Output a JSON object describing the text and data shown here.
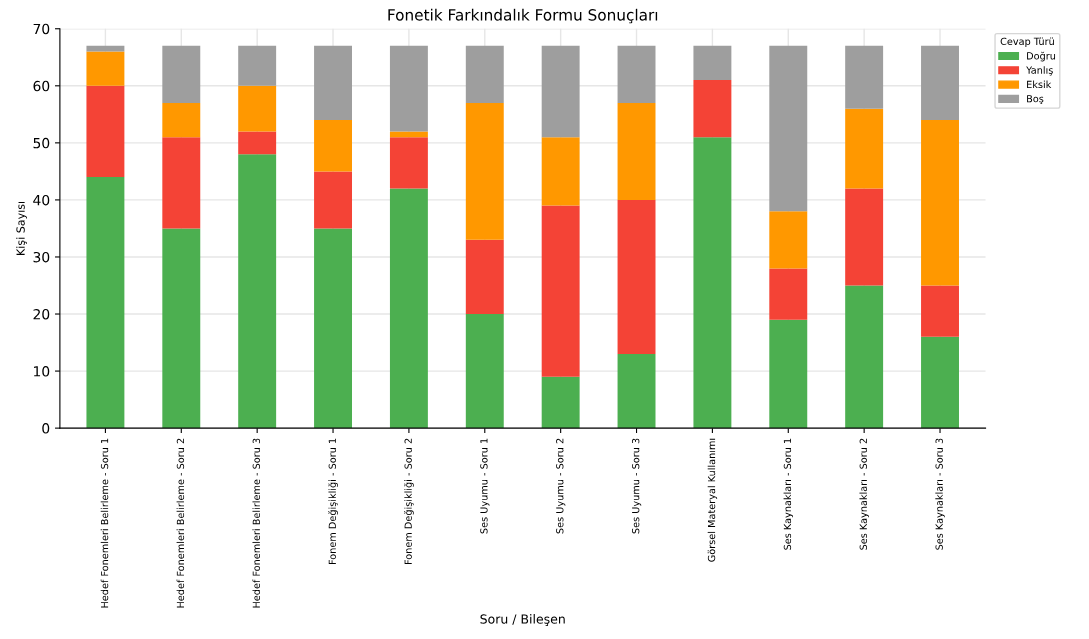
{
  "chart_data": {
    "type": "bar",
    "stacked": true,
    "title": "Fonetik Farkındalık Formu Sonuçları",
    "xlabel": "Soru / Bileşen",
    "ylabel": "Kişi Sayısı",
    "legend_title": "Cevap Türü",
    "legend": "top right",
    "grid": true,
    "categories": [
      "Hedef Fonemleri Belirleme - Soru 1",
      "Hedef Fonemleri Belirleme - Soru 2",
      "Hedef Fonemleri Belirleme - Soru 3",
      "Fonem Değişikliği - Soru 1",
      "Fonem Değişikliği - Soru 2",
      "Ses Uyumu - Soru 1",
      "Ses Uyumu - Soru 2",
      "Ses Uyumu - Soru 3",
      "Görsel Materyal Kullanımı",
      "Ses Kaynakları - Soru 1",
      "Ses Kaynakları - Soru 2",
      "Ses Kaynakları - Soru 3"
    ],
    "series": [
      {
        "name": "Doğru",
        "color": "#4caf50",
        "values": [
          44,
          35,
          48,
          35,
          42,
          20,
          9,
          13,
          51,
          19,
          25,
          16
        ]
      },
      {
        "name": "Yanlış",
        "color": "#f44336",
        "values": [
          16,
          16,
          4,
          10,
          9,
          13,
          30,
          27,
          10,
          9,
          17,
          9
        ]
      },
      {
        "name": "Eksik",
        "color": "#ff9800",
        "values": [
          6,
          6,
          8,
          9,
          1,
          24,
          12,
          17,
          0,
          10,
          14,
          29
        ]
      },
      {
        "name": "Boş",
        "color": "#9e9e9e",
        "values": [
          1,
          10,
          7,
          13,
          15,
          10,
          16,
          10,
          6,
          29,
          11,
          13
        ]
      }
    ],
    "ylim": [
      0,
      70
    ],
    "yticks": [
      0,
      10,
      20,
      30,
      40,
      50,
      60,
      70
    ]
  }
}
